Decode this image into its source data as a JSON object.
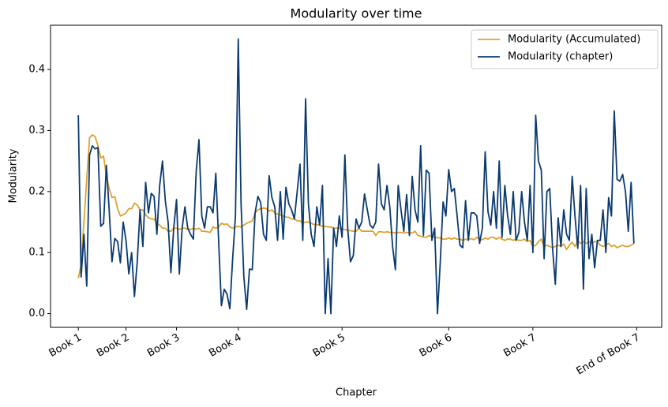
{
  "chart_data": {
    "type": "line",
    "title": "Modularity over time",
    "xlabel": "Chapter",
    "ylabel": "Modularity",
    "x": [
      0,
      1,
      2,
      3,
      4,
      5,
      6,
      7,
      8,
      9,
      10,
      11,
      12,
      13,
      14,
      15,
      16,
      17,
      18,
      19,
      20,
      21,
      22,
      23,
      24,
      25,
      26,
      27,
      28,
      29,
      30,
      31,
      32,
      33,
      34,
      35,
      36,
      37,
      38,
      39,
      40,
      41,
      42,
      43,
      44,
      45,
      46,
      47,
      48,
      49,
      50,
      51,
      52,
      53,
      54,
      55,
      56,
      57,
      58,
      59,
      60,
      61,
      62,
      63,
      64,
      65,
      66,
      67,
      68,
      69,
      70,
      71,
      72,
      73,
      74,
      75,
      76,
      77,
      78,
      79,
      80,
      81,
      82,
      83,
      84,
      85,
      86,
      87,
      88,
      89,
      90,
      91,
      92,
      93,
      94,
      95,
      96,
      97,
      98,
      99,
      100,
      101,
      102,
      103,
      104,
      105,
      106,
      107,
      108,
      109,
      110,
      111,
      112,
      113,
      114,
      115,
      116,
      117,
      118,
      119,
      120,
      121,
      122,
      123,
      124,
      125,
      126,
      127,
      128,
      129,
      130,
      131,
      132,
      133,
      134,
      135,
      136,
      137,
      138,
      139,
      140,
      141,
      142,
      143,
      144,
      145,
      146,
      147,
      148,
      149,
      150,
      151,
      152,
      153,
      154,
      155,
      156,
      157,
      158,
      159,
      160,
      161,
      162,
      163,
      164,
      165,
      166,
      167,
      168,
      169,
      170,
      171,
      172,
      173,
      174,
      175,
      176,
      177,
      178,
      179,
      180,
      181,
      182,
      183,
      184,
      185,
      186,
      187,
      188,
      189,
      190,
      191,
      192,
      193,
      194,
      195,
      196,
      197,
      198
    ],
    "series": [
      {
        "name": "Modularity (Accumulated)",
        "color": "#e0a030",
        "values": [
          0.058,
          0.08,
          0.15,
          0.22,
          0.288,
          0.293,
          0.29,
          0.275,
          0.255,
          0.258,
          0.225,
          0.205,
          0.19,
          0.192,
          0.172,
          0.16,
          0.162,
          0.165,
          0.172,
          0.172,
          0.181,
          0.178,
          0.17,
          0.17,
          0.162,
          0.157,
          0.155,
          0.155,
          0.148,
          0.145,
          0.14,
          0.14,
          0.135,
          0.135,
          0.14,
          0.14,
          0.138,
          0.14,
          0.14,
          0.138,
          0.138,
          0.14,
          0.138,
          0.14,
          0.135,
          0.135,
          0.134,
          0.133,
          0.142,
          0.14,
          0.142,
          0.148,
          0.146,
          0.147,
          0.142,
          0.14,
          0.142,
          0.143,
          0.142,
          0.145,
          0.148,
          0.15,
          0.152,
          0.165,
          0.17,
          0.172,
          0.173,
          0.172,
          0.168,
          0.17,
          0.165,
          0.163,
          0.162,
          0.16,
          0.158,
          0.158,
          0.155,
          0.155,
          0.152,
          0.152,
          0.148,
          0.15,
          0.15,
          0.148,
          0.146,
          0.146,
          0.145,
          0.143,
          0.143,
          0.142,
          0.142,
          0.14,
          0.14,
          0.14,
          0.138,
          0.138,
          0.136,
          0.136,
          0.135,
          0.135,
          0.14,
          0.135,
          0.135,
          0.135,
          0.135,
          0.135,
          0.128,
          0.134,
          0.134,
          0.133,
          0.134,
          0.133,
          0.133,
          0.132,
          0.133,
          0.133,
          0.132,
          0.133,
          0.132,
          0.132,
          0.135,
          0.128,
          0.127,
          0.125,
          0.125,
          0.128,
          0.126,
          0.126,
          0.124,
          0.124,
          0.122,
          0.122,
          0.124,
          0.122,
          0.124,
          0.122,
          0.122,
          0.12,
          0.122,
          0.121,
          0.123,
          0.121,
          0.125,
          0.122,
          0.121,
          0.124,
          0.122,
          0.125,
          0.125,
          0.122,
          0.125,
          0.122,
          0.12,
          0.122,
          0.122,
          0.12,
          0.122,
          0.12,
          0.12,
          0.122,
          0.118,
          0.12,
          0.11,
          0.112,
          0.118,
          0.122,
          0.11,
          0.112,
          0.11,
          0.108,
          0.11,
          0.112,
          0.11,
          0.114,
          0.105,
          0.112,
          0.117,
          0.11,
          0.12,
          0.115,
          0.118,
          0.115,
          0.118,
          0.115,
          0.118,
          0.118,
          0.112,
          0.11,
          0.112,
          0.115,
          0.11,
          0.112,
          0.108,
          0.11,
          0.112,
          0.11,
          0.11,
          0.112,
          0.115
        ]
      },
      {
        "name": "Modularity (chapter)",
        "color": "#0a3a70",
        "values": [
          0.325,
          0.06,
          0.13,
          0.045,
          0.26,
          0.275,
          0.27,
          0.272,
          0.143,
          0.148,
          0.243,
          0.17,
          0.085,
          0.123,
          0.118,
          0.083,
          0.15,
          0.12,
          0.065,
          0.1,
          0.028,
          0.085,
          0.17,
          0.11,
          0.215,
          0.165,
          0.197,
          0.192,
          0.13,
          0.21,
          0.25,
          0.185,
          0.15,
          0.067,
          0.14,
          0.187,
          0.065,
          0.14,
          0.175,
          0.14,
          0.13,
          0.122,
          0.232,
          0.285,
          0.16,
          0.14,
          0.175,
          0.175,
          0.165,
          0.23,
          0.12,
          0.013,
          0.04,
          0.032,
          0.008,
          0.09,
          0.16,
          0.45,
          0.18,
          0.06,
          0.007,
          0.073,
          0.072,
          0.165,
          0.192,
          0.182,
          0.13,
          0.12,
          0.226,
          0.19,
          0.175,
          0.12,
          0.2,
          0.122,
          0.207,
          0.18,
          0.17,
          0.155,
          0.2,
          0.245,
          0.12,
          0.352,
          0.18,
          0.13,
          0.11,
          0.175,
          0.145,
          0.21,
          0.0,
          0.09,
          0.0,
          0.14,
          0.11,
          0.16,
          0.125,
          0.26,
          0.14,
          0.085,
          0.095,
          0.155,
          0.14,
          0.15,
          0.196,
          0.17,
          0.145,
          0.14,
          0.15,
          0.245,
          0.18,
          0.17,
          0.21,
          0.175,
          0.11,
          0.072,
          0.21,
          0.17,
          0.135,
          0.195,
          0.128,
          0.225,
          0.17,
          0.15,
          0.275,
          0.128,
          0.235,
          0.23,
          0.12,
          0.14,
          0.0,
          0.085,
          0.183,
          0.16,
          0.236,
          0.2,
          0.205,
          0.16,
          0.112,
          0.108,
          0.185,
          0.12,
          0.165,
          0.165,
          0.16,
          0.115,
          0.14,
          0.265,
          0.167,
          0.145,
          0.2,
          0.14,
          0.25,
          0.125,
          0.21,
          0.16,
          0.13,
          0.2,
          0.12,
          0.133,
          0.2,
          0.15,
          0.12,
          0.21,
          0.1,
          0.325,
          0.25,
          0.235,
          0.09,
          0.2,
          0.205,
          0.108,
          0.048,
          0.157,
          0.11,
          0.17,
          0.13,
          0.12,
          0.225,
          0.16,
          0.107,
          0.21,
          0.04,
          0.205,
          0.09,
          0.13,
          0.075,
          0.12,
          0.12,
          0.17,
          0.1,
          0.19,
          0.16,
          0.332,
          0.22,
          0.217,
          0.228,
          0.2,
          0.135,
          0.215,
          0.115
        ]
      }
    ],
    "xlim": [
      -9.9,
      207.9
    ],
    "ylim": [
      -0.0225,
      0.4725
    ],
    "xticks": [
      {
        "value": 0,
        "label": "Book 1"
      },
      {
        "value": 17,
        "label": "Book 2"
      },
      {
        "value": 35,
        "label": "Book 3"
      },
      {
        "value": 57,
        "label": "Book 4"
      },
      {
        "value": 94,
        "label": "Book 5"
      },
      {
        "value": 132,
        "label": "Book 6"
      },
      {
        "value": 162,
        "label": "Book 7"
      },
      {
        "value": 199,
        "label": "End of Book 7"
      }
    ],
    "yticks": [
      {
        "value": 0,
        "label": "0.0"
      },
      0.1,
      0.2,
      0.3,
      0.4
    ],
    "legend": "upper right"
  }
}
